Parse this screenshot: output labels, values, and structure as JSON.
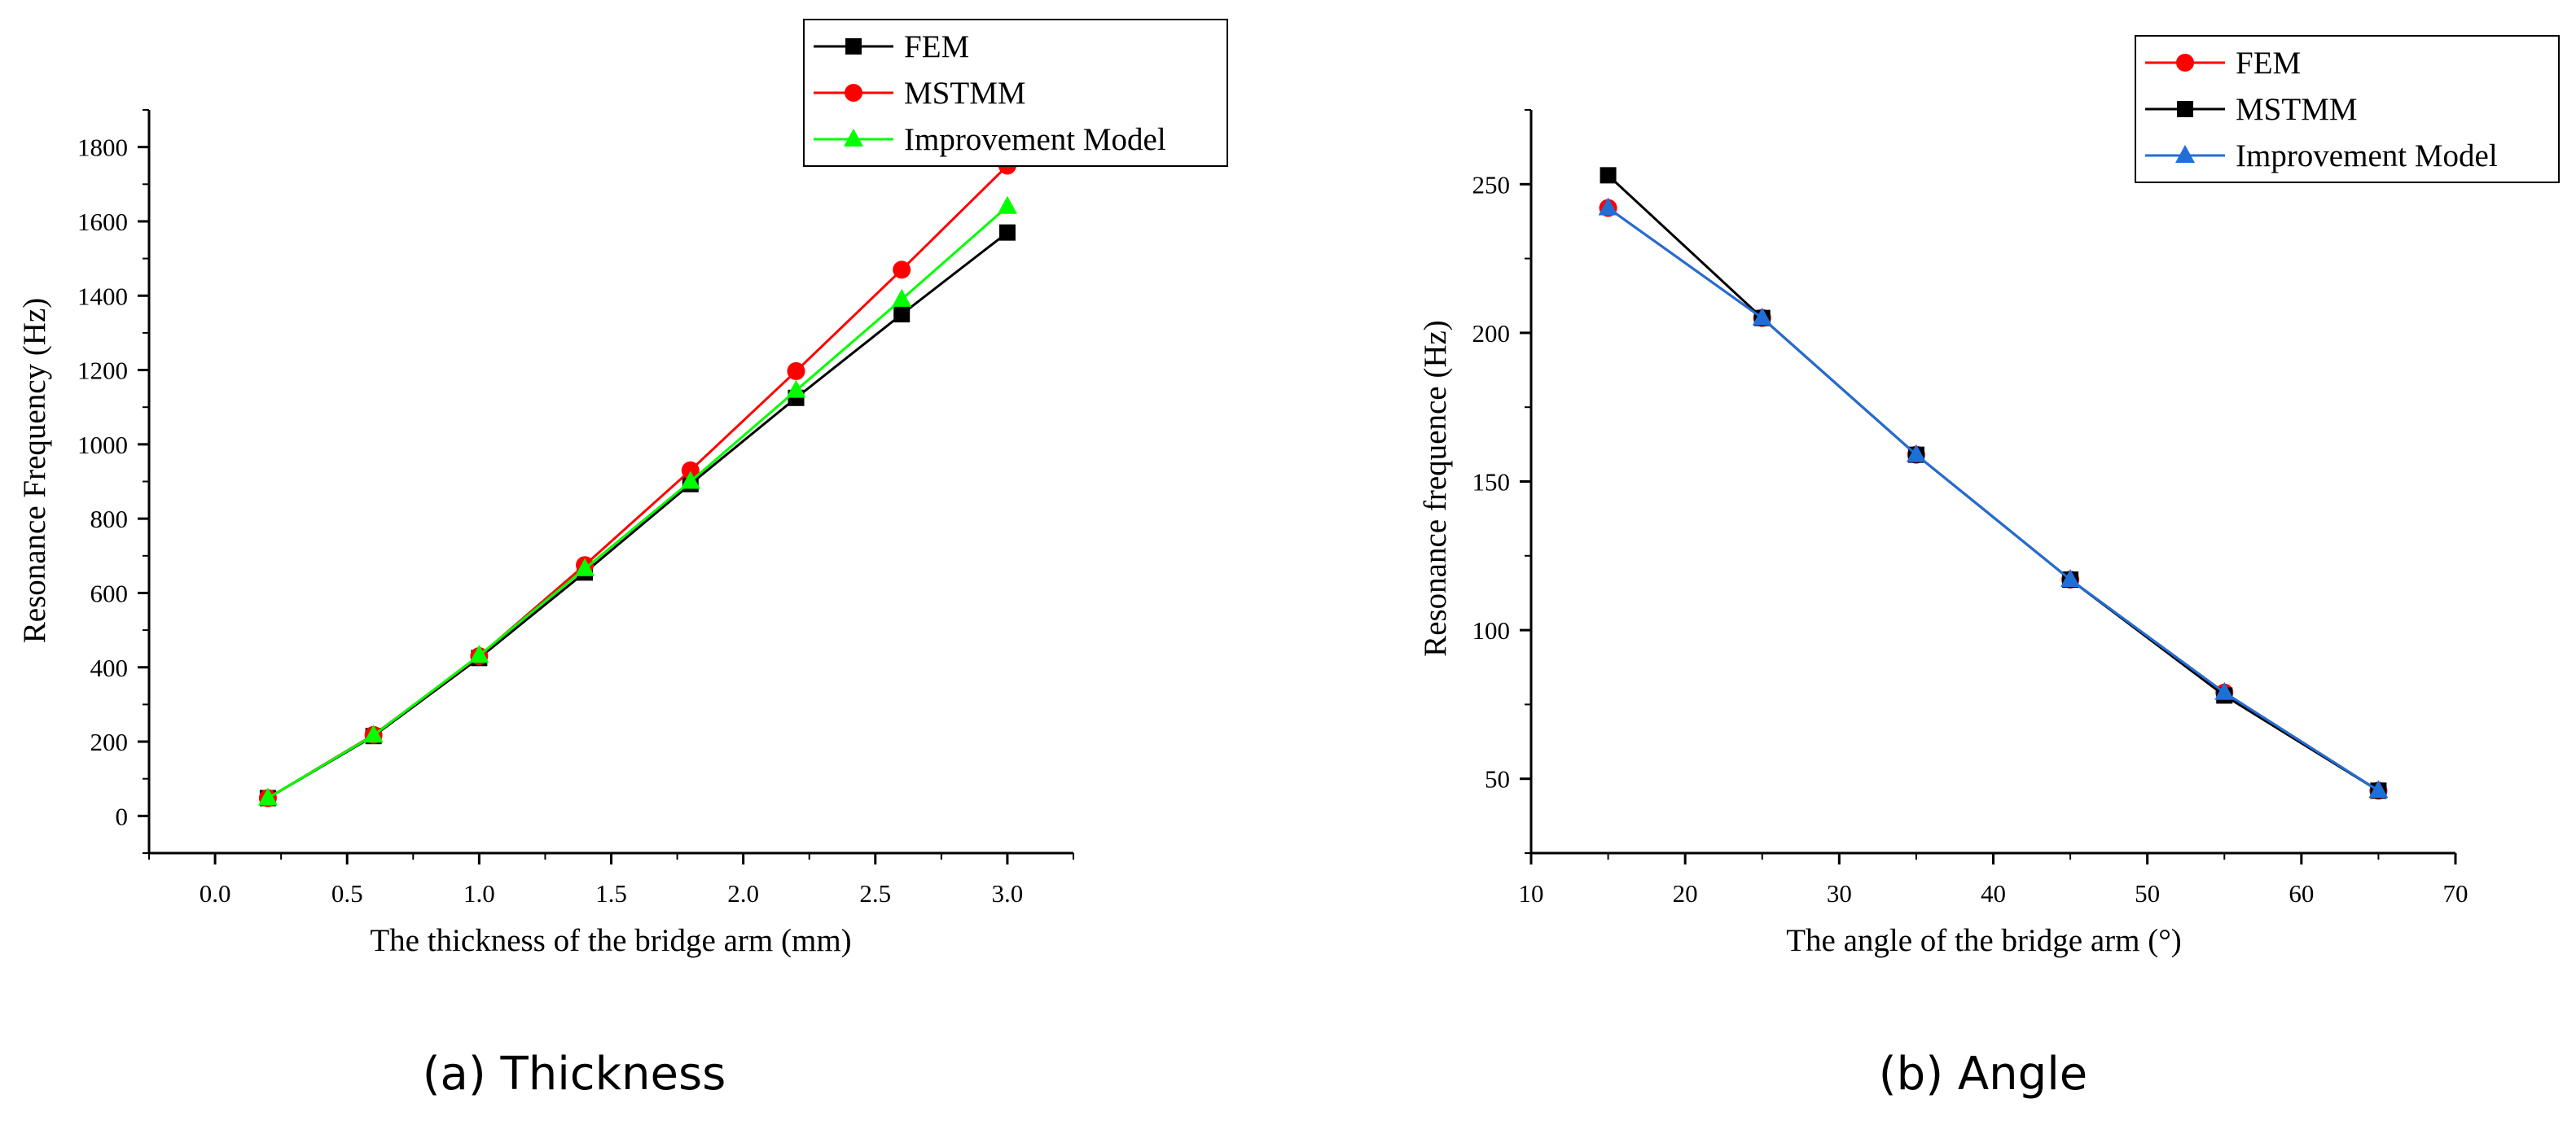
{
  "chart_data": [
    {
      "type": "line",
      "caption": "(a)  Thickness",
      "xlabel": "The thickness of the bridge arm (mm)",
      "ylabel": "Resonance Frequency (Hz)",
      "xlim": [
        -0.25,
        3.25
      ],
      "ylim": [
        -100,
        1900
      ],
      "xticks": [
        0.0,
        0.5,
        1.0,
        1.5,
        2.0,
        2.5,
        3.0
      ],
      "xtick_labels": [
        "0.0",
        "0.5",
        "1.0",
        "1.5",
        "2.0",
        "2.5",
        "3.0"
      ],
      "yticks": [
        0,
        200,
        400,
        600,
        800,
        1000,
        1200,
        1400,
        1600,
        1800
      ],
      "ytick_labels": [
        "0",
        "200",
        "400",
        "600",
        "800",
        "1000",
        "1200",
        "1400",
        "1600",
        "1800"
      ],
      "legend_position": "top-right",
      "x": [
        0.2,
        0.6,
        1.0,
        1.4,
        1.8,
        2.2,
        2.6,
        3.0
      ],
      "series": [
        {
          "name": "FEM",
          "color": "#000000",
          "marker": "square",
          "values": [
            48,
            215,
            425,
            655,
            893,
            1125,
            1350,
            1570
          ]
        },
        {
          "name": "MSTMM",
          "color": "#ff0000",
          "marker": "circle",
          "values": [
            48,
            218,
            430,
            675,
            930,
            1197,
            1470,
            1750
          ]
        },
        {
          "name": "Improvement Model",
          "color": "#00ff00",
          "marker": "triangle",
          "values": [
            48,
            217,
            432,
            665,
            900,
            1145,
            1390,
            1640
          ]
        }
      ]
    },
    {
      "type": "line",
      "caption": "(b)  Angle",
      "xlabel": "The angle of the bridge arm (°)",
      "ylabel": "Resonance frequence (Hz)",
      "xlim": [
        10,
        70
      ],
      "ylim": [
        25,
        275
      ],
      "xticks": [
        10,
        20,
        30,
        40,
        50,
        60,
        70
      ],
      "xtick_labels": [
        "10",
        "20",
        "30",
        "40",
        "50",
        "60",
        "70"
      ],
      "yticks": [
        50,
        100,
        150,
        200,
        250
      ],
      "ytick_labels": [
        "50",
        "100",
        "150",
        "200",
        "250"
      ],
      "legend_position": "top-right",
      "x": [
        15,
        25,
        35,
        45,
        55,
        65
      ],
      "series": [
        {
          "name": "FEM",
          "color": "#ff0000",
          "marker": "circle",
          "values": [
            242,
            205,
            159,
            117,
            79,
            46
          ]
        },
        {
          "name": "MSTMM",
          "color": "#000000",
          "marker": "square",
          "values": [
            253,
            205,
            159,
            117,
            78,
            46
          ]
        },
        {
          "name": "Improvement Model",
          "color": "#1f6fd6",
          "marker": "triangle",
          "values": [
            242,
            205,
            159,
            117,
            79,
            46
          ]
        }
      ]
    }
  ]
}
